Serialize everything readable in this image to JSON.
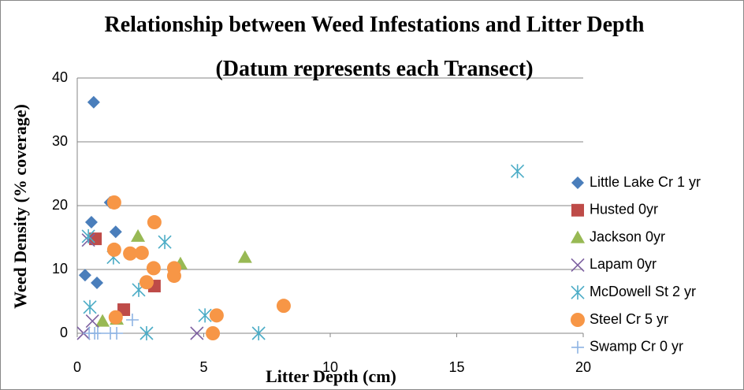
{
  "chart_data": {
    "type": "scatter",
    "title": "Relationship between Weed Infestations and Litter Depth (Datum represents each Transect)",
    "xlabel": "Litter Depth (cm)",
    "ylabel": "Weed Density (% coverage)",
    "xlim": [
      0,
      20
    ],
    "xticks": [
      0,
      5,
      10,
      15,
      20
    ],
    "ylim": [
      0,
      40
    ],
    "yticks": [
      0,
      10,
      20,
      30,
      40
    ],
    "grid": true,
    "legend": "right",
    "series": [
      {
        "name": "Little Lake Cr 1 yr",
        "color": "#4a7ebb",
        "marker": "diamond",
        "x": [
          0.65,
          0.56,
          1.52,
          1.3,
          0.31,
          0.78
        ],
        "values": [
          36.2,
          17.4,
          15.9,
          20.5,
          9.1,
          7.9
        ]
      },
      {
        "name": "Husted 0yr",
        "color": "#be4b48",
        "marker": "square",
        "x": [
          0.72,
          1.84,
          3.05
        ],
        "values": [
          14.8,
          3.7,
          7.4
        ]
      },
      {
        "name": "Jackson 0yr",
        "color": "#98b954",
        "marker": "triangle",
        "x": [
          2.4,
          4.08,
          6.63,
          1.0,
          1.56
        ],
        "values": [
          15.2,
          10.9,
          11.9,
          1.9,
          2.2
        ]
      },
      {
        "name": "Lapam 0yr",
        "color": "#7d60a0",
        "marker": "x",
        "x": [
          0.44,
          0.25,
          4.73,
          0.6
        ],
        "values": [
          14.6,
          0,
          0,
          1.9
        ]
      },
      {
        "name": "McDowell St 2 yr",
        "color": "#4bacc6",
        "marker": "asterisk",
        "x": [
          17.4,
          3.46,
          1.43,
          2.43,
          0.5,
          5.05,
          2.74,
          7.17,
          0.44
        ],
        "values": [
          25.4,
          14.3,
          11.9,
          6.8,
          4.1,
          2.8,
          0,
          0,
          15.2
        ]
      },
      {
        "name": "Steel Cr 5 yr",
        "color": "#f79646",
        "marker": "circle",
        "x": [
          1.46,
          3.05,
          1.46,
          2.09,
          2.55,
          3.02,
          3.83,
          3.83,
          2.74,
          5.51,
          8.16,
          1.52,
          5.36
        ],
        "values": [
          20.5,
          17.4,
          13.1,
          12.5,
          12.6,
          10.2,
          10.2,
          9.0,
          8.0,
          2.8,
          4.3,
          2.5,
          0
        ]
      },
      {
        "name": "Swamp Cr 0 yr",
        "color": "#8eb4e3",
        "marker": "plus",
        "x": [
          2.18,
          0.47,
          0.69,
          0.81,
          1.31,
          1.56
        ],
        "values": [
          2.1,
          0,
          0,
          0,
          0,
          0
        ]
      }
    ]
  }
}
